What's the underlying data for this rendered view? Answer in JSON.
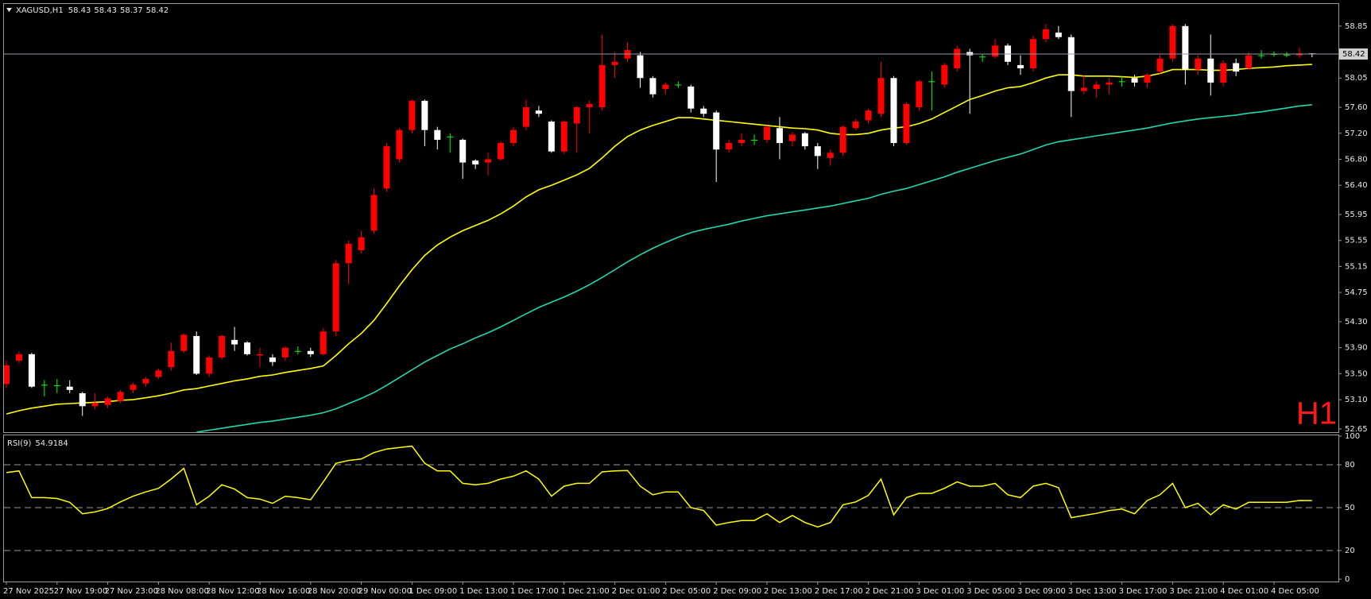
{
  "chart_data": {
    "type": "candlestick",
    "symbol": "XAGUSD,H1",
    "timeframe_label": "H1",
    "up_color": "#ff0000",
    "down_color": "#ffffff",
    "doji_color": "#00ff00",
    "price_line_color": "#8c9aa8",
    "categories": [
      "27 Nov 2025",
      null,
      null,
      null,
      "27 Nov 19:00",
      null,
      null,
      null,
      "27 Nov 23:00",
      null,
      null,
      null,
      "28 Nov 08:00",
      null,
      null,
      null,
      "28 Nov 12:00",
      null,
      null,
      null,
      "28 Nov 16:00",
      null,
      null,
      null,
      "28 Nov 20:00",
      null,
      null,
      null,
      "29 Nov 00:00",
      null,
      null,
      null,
      "1 Dec 09:00",
      null,
      null,
      null,
      "1 Dec 13:00",
      null,
      null,
      null,
      "1 Dec 17:00",
      null,
      null,
      null,
      "1 Dec 21:00",
      null,
      null,
      null,
      "2 Dec 01:00",
      null,
      null,
      null,
      "2 Dec 05:00",
      null,
      null,
      null,
      "2 Dec 09:00",
      null,
      null,
      null,
      "2 Dec 13:00",
      null,
      null,
      null,
      "2 Dec 17:00",
      null,
      null,
      null,
      "2 Dec 21:00",
      null,
      null,
      null,
      "3 Dec 01:00",
      null,
      null,
      null,
      "3 Dec 05:00",
      null,
      null,
      null,
      "3 Dec 09:00",
      null,
      null,
      null,
      "3 Dec 13:00",
      null,
      null,
      null,
      "3 Dec 17:00",
      null,
      null,
      null,
      "3 Dec 21:00",
      null,
      null,
      null,
      "4 Dec 01:00",
      null,
      null,
      null,
      "4 Dec 05:00",
      null,
      null,
      null
    ],
    "open": [
      53.34,
      53.7,
      53.8,
      53.33,
      53.32,
      53.3,
      53.2,
      53.0,
      53.02,
      53.08,
      53.25,
      53.35,
      53.45,
      53.6,
      53.85,
      54.08,
      53.5,
      53.75,
      54.02,
      53.98,
      53.78,
      53.75,
      53.75,
      53.85,
      53.85,
      53.8,
      54.15,
      55.2,
      55.4,
      55.7,
      56.35,
      56.8,
      57.25,
      57.7,
      57.25,
      57.15,
      57.1,
      56.78,
      56.75,
      56.8,
      57.05,
      57.3,
      57.55,
      57.38,
      56.92,
      57.35,
      57.6,
      57.6,
      58.25,
      58.35,
      58.4,
      58.05,
      57.88,
      57.95,
      57.92,
      57.58,
      57.52,
      56.95,
      57.05,
      57.1,
      57.1,
      57.28,
      57.08,
      57.2,
      57.0,
      56.82,
      56.9,
      57.28,
      57.4,
      57.5,
      58.05,
      57.05,
      57.6,
      58.0,
      57.95,
      58.2,
      58.45,
      58.38,
      58.38,
      58.55,
      58.25,
      58.2,
      58.65,
      58.75,
      58.68,
      57.85,
      57.88,
      57.95,
      58.0,
      58.05,
      57.98,
      58.15,
      58.35,
      58.85,
      58.18,
      58.35,
      57.98,
      58.28,
      58.2,
      58.4,
      58.42,
      58.41,
      58.4,
      58.43
    ],
    "high": [
      53.7,
      53.84,
      53.82,
      53.4,
      53.42,
      53.4,
      53.22,
      53.2,
      53.15,
      53.25,
      53.36,
      53.45,
      53.58,
      53.98,
      54.12,
      54.15,
      53.78,
      54.1,
      54.22,
      54.0,
      53.9,
      53.8,
      53.92,
      53.92,
      53.9,
      54.2,
      55.25,
      55.55,
      55.7,
      56.35,
      57.05,
      57.28,
      57.72,
      57.72,
      57.3,
      57.2,
      57.12,
      56.8,
      56.9,
      57.08,
      57.3,
      57.72,
      57.62,
      57.4,
      57.4,
      57.62,
      57.7,
      58.72,
      58.45,
      58.6,
      58.45,
      58.08,
      57.98,
      58.0,
      57.95,
      57.62,
      57.55,
      57.1,
      57.2,
      57.18,
      57.32,
      57.45,
      57.22,
      57.22,
      57.05,
      56.95,
      57.32,
      57.42,
      57.58,
      58.3,
      58.08,
      57.68,
      58.02,
      58.15,
      58.28,
      58.55,
      58.5,
      58.42,
      58.65,
      58.58,
      58.4,
      58.7,
      58.88,
      58.85,
      58.72,
      58.1,
      58.0,
      58.05,
      58.08,
      58.1,
      58.12,
      58.4,
      58.88,
      58.88,
      58.4,
      58.72,
      58.32,
      58.35,
      58.45,
      58.48,
      58.46,
      58.45,
      58.52,
      58.43
    ],
    "low": [
      53.28,
      53.66,
      53.28,
      53.15,
      53.2,
      53.2,
      52.85,
      52.95,
      52.97,
      53.05,
      53.2,
      53.3,
      53.42,
      53.55,
      53.82,
      53.48,
      53.45,
      53.72,
      53.85,
      53.78,
      53.6,
      53.62,
      53.7,
      53.8,
      53.76,
      53.78,
      54.08,
      54.88,
      55.35,
      55.65,
      56.3,
      56.75,
      57.2,
      57.0,
      56.95,
      56.9,
      56.5,
      56.65,
      56.55,
      56.78,
      57.0,
      57.25,
      57.45,
      56.9,
      56.88,
      56.9,
      57.2,
      57.55,
      58.05,
      58.3,
      57.9,
      57.75,
      57.8,
      57.9,
      57.52,
      57.45,
      56.45,
      56.9,
      57.0,
      57.02,
      57.05,
      56.8,
      57.0,
      56.95,
      56.65,
      56.7,
      56.85,
      57.25,
      57.35,
      57.45,
      57.0,
      57.02,
      57.55,
      57.55,
      57.9,
      58.15,
      57.5,
      58.3,
      58.35,
      58.25,
      58.1,
      58.15,
      58.6,
      58.65,
      57.45,
      57.8,
      57.75,
      57.8,
      57.92,
      57.92,
      57.9,
      58.1,
      58.3,
      57.95,
      58.1,
      57.78,
      57.92,
      58.08,
      58.18,
      58.35,
      58.38,
      58.37,
      58.36,
      58.37
    ],
    "close": [
      53.63,
      53.8,
      53.3,
      53.33,
      53.32,
      53.25,
      53.0,
      53.05,
      53.12,
      53.22,
      53.33,
      53.42,
      53.55,
      53.85,
      54.1,
      53.5,
      53.75,
      54.08,
      53.95,
      53.8,
      53.8,
      53.68,
      53.9,
      53.85,
      53.8,
      54.15,
      55.2,
      55.5,
      55.6,
      56.25,
      57.0,
      57.25,
      57.7,
      57.25,
      57.1,
      57.15,
      56.75,
      56.72,
      56.8,
      57.05,
      57.25,
      57.6,
      57.5,
      56.92,
      57.38,
      57.6,
      57.65,
      58.25,
      58.3,
      58.48,
      58.05,
      57.8,
      57.95,
      57.95,
      57.58,
      57.5,
      56.95,
      57.05,
      57.1,
      57.1,
      57.3,
      57.05,
      57.18,
      57.0,
      56.85,
      56.9,
      57.3,
      57.38,
      57.55,
      58.05,
      57.05,
      57.65,
      58.0,
      58.0,
      58.25,
      58.5,
      58.4,
      58.38,
      58.55,
      58.3,
      58.2,
      58.65,
      58.8,
      58.68,
      57.85,
      57.9,
      57.95,
      57.98,
      58.0,
      57.98,
      58.1,
      58.35,
      58.85,
      58.18,
      58.35,
      57.98,
      58.28,
      58.15,
      58.4,
      58.4,
      58.42,
      58.41,
      58.43,
      58.42
    ],
    "ylim": [
      52.6,
      59.19
    ],
    "yticks": [
      52.65,
      {
        "value": 53.1,
        "label": "53.10"
      },
      {
        "value": 53.5,
        "label": "53.50"
      },
      {
        "value": 53.9,
        "label": "53.90"
      },
      {
        "value": 54.3,
        "label": "54.30"
      },
      54.75,
      55.15,
      55.55,
      55.95,
      {
        "value": 56.4,
        "label": "56.40"
      },
      {
        "value": 56.8,
        "label": "56.80"
      },
      {
        "value": 57.2,
        "label": "57.20"
      },
      {
        "value": 57.6,
        "label": "57.60"
      },
      58.05,
      58.85
    ],
    "moving_averages": [
      {
        "color": "#ffff00",
        "values": [
          52.88,
          52.93,
          52.97,
          53.0,
          53.03,
          53.04,
          53.05,
          53.06,
          53.07,
          53.09,
          53.1,
          53.13,
          53.16,
          53.2,
          53.25,
          53.27,
          53.31,
          53.35,
          53.39,
          53.42,
          53.46,
          53.48,
          53.52,
          53.55,
          53.58,
          53.62,
          53.78,
          53.96,
          54.12,
          54.32,
          54.58,
          54.85,
          55.1,
          55.32,
          55.48,
          55.6,
          55.7,
          55.78,
          55.86,
          55.96,
          56.08,
          56.22,
          56.33,
          56.4,
          56.48,
          56.56,
          56.66,
          56.82,
          57.0,
          57.15,
          57.25,
          57.32,
          57.38,
          57.44,
          57.44,
          57.42,
          57.4,
          57.38,
          57.36,
          57.34,
          57.32,
          57.3,
          57.28,
          57.27,
          57.25,
          57.2,
          57.18,
          57.18,
          57.2,
          57.25,
          57.28,
          57.3,
          57.35,
          57.42,
          57.52,
          57.62,
          57.72,
          57.78,
          57.85,
          57.9,
          57.92,
          57.98,
          58.05,
          58.1,
          58.1,
          58.08,
          58.08,
          58.08,
          58.07,
          58.06,
          58.08,
          58.12,
          58.18,
          58.18,
          58.18,
          58.17,
          58.17,
          58.18,
          58.2,
          58.21,
          58.22,
          58.24,
          58.25,
          58.26
        ]
      },
      {
        "color": "#20d8b0",
        "values": [
          null,
          null,
          null,
          null,
          null,
          null,
          null,
          null,
          null,
          null,
          null,
          null,
          null,
          null,
          null,
          52.6,
          52.63,
          52.66,
          52.69,
          52.72,
          52.75,
          52.77,
          52.8,
          52.83,
          52.86,
          52.9,
          52.96,
          53.04,
          53.12,
          53.21,
          53.32,
          53.44,
          53.56,
          53.68,
          53.78,
          53.88,
          53.96,
          54.05,
          54.13,
          54.22,
          54.32,
          54.42,
          54.52,
          54.6,
          54.68,
          54.77,
          54.87,
          54.98,
          55.1,
          55.22,
          55.33,
          55.43,
          55.52,
          55.6,
          55.67,
          55.72,
          55.76,
          55.8,
          55.85,
          55.89,
          55.93,
          55.96,
          55.99,
          56.02,
          56.05,
          56.08,
          56.12,
          56.16,
          56.2,
          56.26,
          56.31,
          56.35,
          56.41,
          56.47,
          56.53,
          56.6,
          56.66,
          56.72,
          56.78,
          56.83,
          56.88,
          56.95,
          57.02,
          57.07,
          57.1,
          57.13,
          57.16,
          57.19,
          57.22,
          57.25,
          57.28,
          57.32,
          57.36,
          57.39,
          57.42,
          57.44,
          57.46,
          57.48,
          57.51,
          57.53,
          57.56,
          57.59,
          57.62,
          57.64
        ]
      }
    ],
    "rsi": {
      "title": "RSI(9)",
      "color": "#ffff00",
      "level_color": "#9a9a9a",
      "ylim": [
        0,
        100
      ],
      "yticks": [
        0,
        20,
        50,
        80,
        100
      ],
      "levels": [
        20,
        50,
        80
      ],
      "values": [
        74.5,
        75.7,
        57,
        57,
        56.4,
        53.7,
        45.7,
        47,
        49.4,
        54,
        58,
        61,
        63.5,
        70,
        77.5,
        52,
        58,
        66,
        63,
        57,
        56,
        53,
        58,
        57,
        55.5,
        68,
        81,
        83,
        84,
        88.5,
        91,
        92,
        93,
        81,
        75.7,
        75.7,
        67,
        66,
        67,
        70,
        72,
        75.7,
        70,
        58,
        65,
        67,
        67,
        75,
        75.7,
        76,
        65,
        59,
        61,
        61,
        50,
        48,
        37.8,
        39.6,
        41,
        41,
        45.7,
        39.6,
        44.5,
        39.6,
        36.5,
        39.6,
        52,
        54,
        58.6,
        70,
        45,
        57,
        60,
        60,
        63.5,
        68,
        65,
        65,
        67,
        59,
        57,
        65,
        67,
        64,
        43,
        44.5,
        46,
        48,
        49,
        45.7,
        55,
        59,
        67,
        50,
        53,
        45,
        52,
        49,
        53.7,
        53.7,
        53.7,
        53.7,
        55,
        54.9184
      ]
    }
  }
}
